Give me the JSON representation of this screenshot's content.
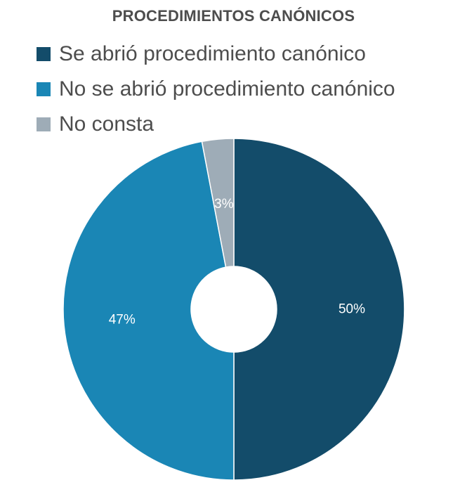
{
  "chart_data": {
    "type": "pie",
    "title": "PROCEDIMIENTOS CANÓNICOS",
    "legend_position": "top-left",
    "slices": [
      {
        "label": "Se abrió procedimiento canónico",
        "value": 50,
        "display": "50%",
        "color": "#134c6a"
      },
      {
        "label": "No se abrió procedimiento canónico",
        "value": 47,
        "display": "47%",
        "color": "#1a86b5"
      },
      {
        "label": "No consta",
        "value": 3,
        "display": "3%",
        "color": "#9eacb7"
      }
    ]
  }
}
